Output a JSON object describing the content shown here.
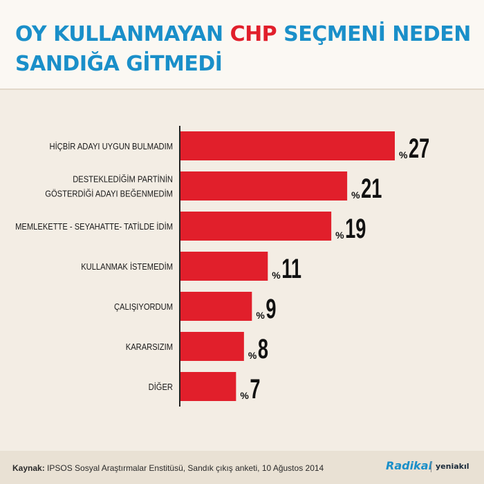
{
  "title": {
    "part1": "OY KULLANMAYAN ",
    "highlight": "CHP",
    "part2": " SEÇMENİ NEDEN SANDIĞA GİTMEDİ"
  },
  "colors": {
    "bar": "#e11f2b",
    "title": "#1a8fc9",
    "highlight": "#e11f2b",
    "axis": "#222222",
    "label": "#1a1a1a"
  },
  "chart_data": {
    "type": "bar",
    "orientation": "horizontal",
    "title": "OY KULLANMAYAN CHP SEÇMENİ NEDEN SANDIĞA GİTMEDİ",
    "categories": [
      "HİÇBİR ADAYI UYGUN BULMADIM",
      "DESTEKLEDİĞİM PARTİNİN GÖSTERDİĞİ ADAYI BEĞENMEDİM",
      "MEMLEKETTE - SEYAHATTE- TATİLDE İDİM",
      "KULLANMAK İSTEMEDİM",
      "ÇALIŞIYORDUM",
      "KARARSIZIM",
      "DİĞER"
    ],
    "category_lines": [
      [
        "HİÇBİR ADAYI UYGUN BULMADIM"
      ],
      [
        "DESTEKLEDİĞİM PARTİNİN",
        "GÖSTERDİĞİ ADAYI BEĞENMEDİM"
      ],
      [
        "MEMLEKETTE - SEYAHATTE- TATİLDE İDİM"
      ],
      [
        "KULLANMAK İSTEMEDİM"
      ],
      [
        "ÇALIŞIYORDUM"
      ],
      [
        "KARARSIZIM"
      ],
      [
        "DİĞER"
      ]
    ],
    "values": [
      27,
      21,
      19,
      11,
      9,
      8,
      7
    ],
    "value_prefix": "%",
    "xlim": [
      0,
      30
    ],
    "grid": false,
    "legend": "none"
  },
  "footer": {
    "source_label": "Kaynak:",
    "source_text": " IPSOS Sosyal Araştırmalar Enstitüsü, Sandık çıkış anketi, 10 Ağustos 2014",
    "logo_primary": "Radikal",
    "logo_secondary": "yeniakıl"
  }
}
